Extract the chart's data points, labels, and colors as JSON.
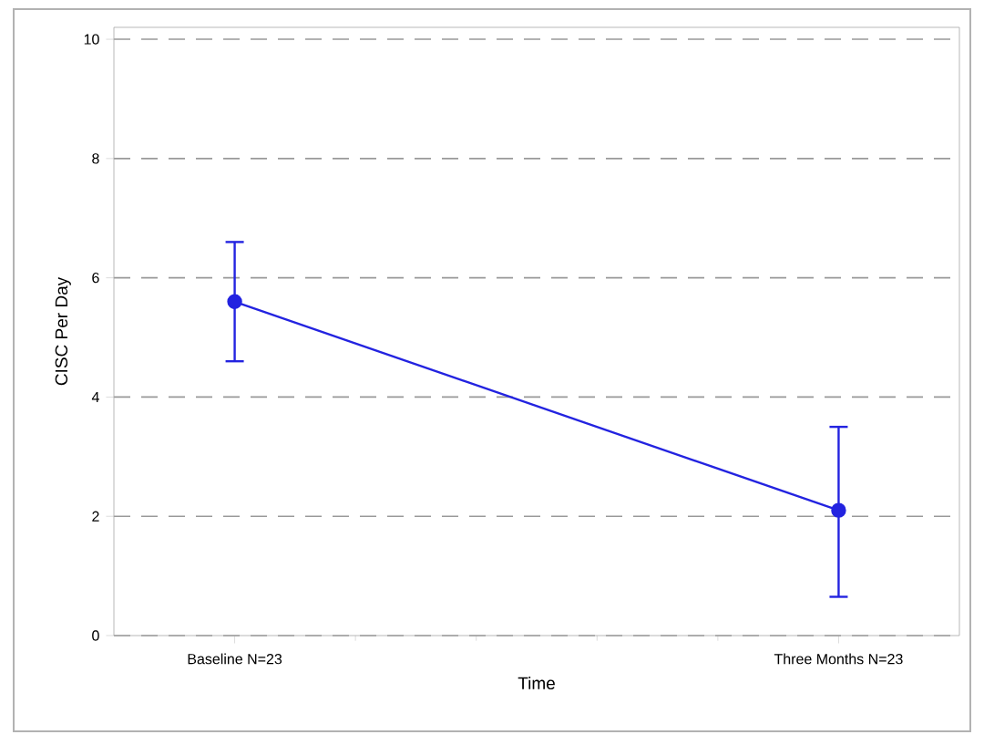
{
  "chart_data": {
    "type": "line",
    "categories": [
      "Baseline N=23",
      "Three Months N=23"
    ],
    "series": [
      {
        "color": "#2323e0",
        "values": [
          5.6,
          2.1
        ],
        "errors": [
          1.0,
          [
            0.65,
            3.5
          ]
        ]
      }
    ],
    "xlabel": "Time",
    "ylabel": "CISC Per Day",
    "ylim": [
      0,
      10.2
    ],
    "yticks": [
      0,
      2,
      4,
      6,
      8,
      10
    ],
    "grid": "y",
    "marker": "circle",
    "line_style": "solid"
  }
}
